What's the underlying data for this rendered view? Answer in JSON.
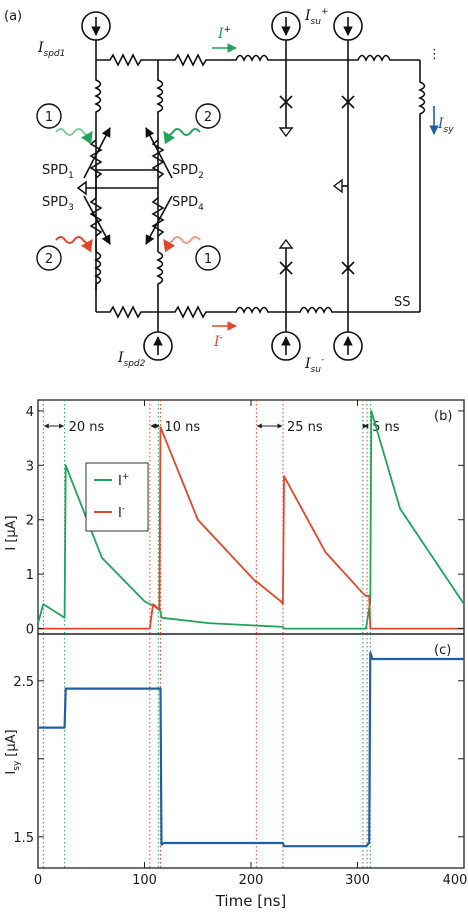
{
  "panel_a": {
    "panel_label": "(a)",
    "currents": {
      "i_spd1": "I",
      "i_spd1_sub": "spd1",
      "i_spd2": "I",
      "i_spd2_sub": "spd2",
      "i_plus": "I",
      "i_plus_sup": "+",
      "i_minus": "I",
      "i_minus_sup": "-",
      "i_su_plus": "I",
      "i_su_plus_sub": "su",
      "i_su_plus_sup": "+",
      "i_su_minus": "I",
      "i_su_minus_sub": "su",
      "i_su_minus_sup": "-",
      "i_sy": "I",
      "i_sy_sub": "sy"
    },
    "detectors": [
      {
        "label": "SPD",
        "sub": "1"
      },
      {
        "label": "SPD",
        "sub": "2"
      },
      {
        "label": "SPD",
        "sub": "3"
      },
      {
        "label": "SPD",
        "sub": "4"
      }
    ],
    "photon_labels": [
      "1",
      "2",
      "2",
      "1"
    ],
    "ss_label": "SS",
    "ellipsis": "⋮",
    "colors": {
      "green": "#21a35b",
      "red": "#e0472b",
      "light_green": "#7fcc9a",
      "light_red": "#f29a80",
      "blue": "#1f5fa8"
    }
  },
  "panel_b": {
    "panel_label": "(b)",
    "ylabel": "I [μA]",
    "legend": [
      {
        "name": "I",
        "sup": "+",
        "color": "#21a35b"
      },
      {
        "name": "I",
        "sup": "-",
        "color": "#e0472b"
      }
    ],
    "interval_labels": [
      "20 ns",
      "10 ns",
      "25 ns",
      "5 ns"
    ],
    "yticks": [
      "0",
      "1",
      "2",
      "3",
      "4"
    ]
  },
  "panel_c": {
    "panel_label": "(c)",
    "ylabel": "I",
    "ylabel_sub": "sy",
    "ylabel_unit": "[μA]",
    "yticks": [
      "1.5",
      "2.5"
    ],
    "xlabel": "Time [ns]",
    "xticks": [
      "0",
      "100",
      "200",
      "300",
      "400"
    ]
  },
  "chart_data": [
    {
      "type": "line",
      "xlim": [
        0,
        400
      ],
      "ylim": [
        -0.1,
        4.2
      ],
      "series": [
        {
          "name": "I+",
          "color": "#21a35b",
          "x": [
            0,
            5,
            25,
            26,
            60,
            100,
            110,
            115,
            116,
            160,
            210,
            230,
            231,
            300,
            308,
            312,
            313,
            340,
            400
          ],
          "y": [
            0.1,
            0.45,
            0.2,
            3.0,
            1.3,
            0.5,
            0.4,
            0.32,
            0.2,
            0.1,
            0.05,
            0.03,
            0.0,
            0.0,
            0.0,
            0.5,
            4.0,
            2.2,
            0.45
          ]
        },
        {
          "name": "I-",
          "color": "#e0472b",
          "x": [
            0,
            105,
            108,
            114,
            115,
            150,
            205,
            206,
            228,
            230,
            231,
            270,
            305,
            308,
            311,
            312,
            330,
            400
          ],
          "y": [
            0.0,
            0.0,
            0.45,
            0.35,
            3.7,
            2.0,
            0.85,
            0.85,
            0.5,
            0.45,
            2.8,
            1.4,
            0.65,
            0.6,
            0.6,
            0.0,
            0.0,
            0.0
          ]
        }
      ],
      "vlines": [
        {
          "x": 5,
          "color": "#21a35b"
        },
        {
          "x": 25,
          "color": "#21a35b"
        },
        {
          "x": 105,
          "color": "#e0472b"
        },
        {
          "x": 113,
          "color": "#21a35b"
        },
        {
          "x": 115,
          "color": "#e0472b"
        },
        {
          "x": 205,
          "color": "#e0472b"
        },
        {
          "x": 230,
          "color": "#e0472b"
        },
        {
          "x": 305,
          "color": "#21a35b"
        },
        {
          "x": 309,
          "color": "#e0472b"
        },
        {
          "x": 312,
          "color": "#21a35b"
        }
      ],
      "intervals": [
        {
          "from": 5,
          "to": 25,
          "label": "20 ns"
        },
        {
          "from": 105,
          "to": 115,
          "label": "10 ns"
        },
        {
          "from": 205,
          "to": 230,
          "label": "25 ns"
        },
        {
          "from": 305,
          "to": 310,
          "label": "5 ns"
        }
      ]
    },
    {
      "type": "line",
      "xlim": [
        0,
        400
      ],
      "ylim": [
        1.3,
        2.8
      ],
      "series": [
        {
          "name": "Isy",
          "color": "#1f5fa8",
          "x": [
            0,
            25,
            26,
            115,
            116,
            118,
            230,
            231,
            308,
            311,
            312,
            314,
            400
          ],
          "y": [
            2.2,
            2.2,
            2.45,
            2.45,
            1.45,
            1.46,
            1.46,
            1.44,
            1.44,
            1.46,
            2.68,
            2.64,
            2.64
          ]
        }
      ]
    }
  ]
}
